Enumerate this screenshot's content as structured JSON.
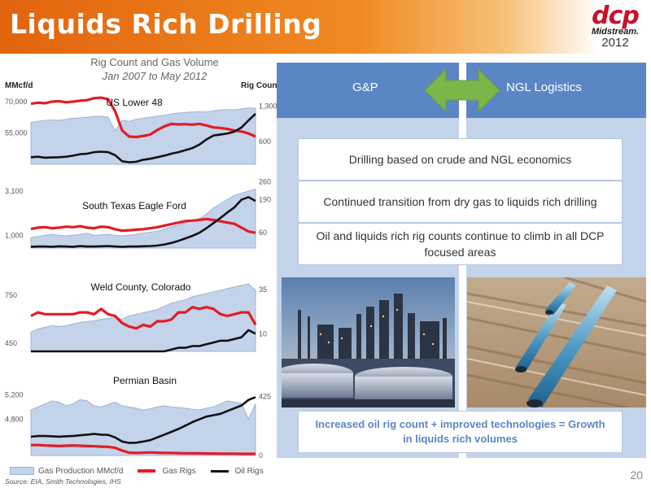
{
  "header": {
    "title": "Liquids Rich Drilling"
  },
  "logo": {
    "mark": "dcp",
    "sub": "Midstream.",
    "year": "2012"
  },
  "left": {
    "title_line1": "Rig Count and Gas Volume",
    "title_line2": "Jan 2007 to May 2012",
    "left_axis_label": "MMcf/d",
    "right_axis_label": "Rig Count"
  },
  "chart_data": [
    {
      "type": "line",
      "title": "US Lower 48",
      "y_left_ticks": [
        "70,000",
        "55,000"
      ],
      "y_right_ticks": [
        "1,300",
        "600"
      ],
      "series": [
        {
          "name": "Gas Production MMcf/d",
          "style": "area",
          "values": [
            60000,
            60500,
            61000,
            61200,
            61000,
            61500,
            62000,
            62200,
            62500,
            62800,
            63000,
            62500,
            56000,
            61000,
            60500,
            61500,
            62000,
            62500,
            63000,
            63500,
            64000,
            64500,
            64800,
            65000,
            65200,
            65000,
            65500,
            66000,
            66200,
            66000,
            66500,
            67000,
            66800
          ]
        },
        {
          "name": "Gas Rigs",
          "style": "line",
          "values": [
            1350,
            1370,
            1360,
            1390,
            1400,
            1380,
            1390,
            1410,
            1420,
            1460,
            1470,
            1440,
            1200,
            820,
            700,
            690,
            710,
            740,
            830,
            900,
            950,
            940,
            945,
            935,
            950,
            920,
            880,
            870,
            850,
            820,
            800,
            760,
            700
          ]
        },
        {
          "name": "Oil Rigs",
          "style": "line",
          "values": [
            290,
            300,
            280,
            285,
            290,
            300,
            320,
            350,
            360,
            390,
            400,
            390,
            330,
            210,
            190,
            200,
            240,
            260,
            290,
            320,
            360,
            390,
            430,
            470,
            540,
            640,
            720,
            740,
            760,
            800,
            880,
            1020,
            1150
          ]
        }
      ]
    },
    {
      "type": "line",
      "title": "South Texas Eagle Ford",
      "y_left_ticks": [
        "3,100",
        "1,000"
      ],
      "y_right_ticks": [
        "260",
        "190",
        "60"
      ],
      "series": [
        {
          "name": "Gas Production MMcf/d",
          "style": "area",
          "values": [
            900,
            950,
            1000,
            1050,
            1000,
            980,
            1000,
            1050,
            1100,
            1000,
            1020,
            1050,
            1000,
            980,
            1000,
            1050,
            1100,
            1150,
            1200,
            1300,
            1400,
            1500,
            1600,
            1700,
            1800,
            2000,
            2300,
            2500,
            2700,
            2900,
            3000,
            3100,
            3200
          ]
        },
        {
          "name": "Gas Rigs",
          "style": "line",
          "values": [
            75,
            80,
            82,
            78,
            80,
            84,
            82,
            86,
            80,
            78,
            84,
            82,
            74,
            68,
            70,
            72,
            74,
            78,
            82,
            88,
            94,
            100,
            106,
            108,
            110,
            114,
            110,
            105,
            100,
            95,
            80,
            65,
            60
          ]
        },
        {
          "name": "Oil Rigs",
          "style": "line",
          "values": [
            5,
            6,
            6,
            5,
            7,
            6,
            5,
            8,
            6,
            6,
            7,
            8,
            6,
            5,
            6,
            6,
            7,
            8,
            10,
            14,
            20,
            28,
            38,
            48,
            60,
            78,
            98,
            118,
            140,
            160,
            190,
            200,
            185
          ]
        }
      ]
    },
    {
      "type": "line",
      "title": "Weld County, Colorado",
      "y_left_ticks": [
        "750",
        "450"
      ],
      "y_right_ticks": [
        "35",
        "10"
      ],
      "series": [
        {
          "name": "Gas Production MMcf/d",
          "style": "area",
          "values": [
            520,
            540,
            550,
            560,
            555,
            560,
            570,
            580,
            585,
            590,
            600,
            605,
            610,
            600,
            620,
            630,
            640,
            650,
            660,
            680,
            700,
            710,
            720,
            740,
            750,
            760,
            770,
            780,
            790,
            800,
            810,
            820,
            780
          ]
        },
        {
          "name": "Gas Rigs",
          "style": "line",
          "values": [
            20,
            22,
            21,
            21,
            21,
            21,
            21,
            22,
            22,
            21,
            24,
            21,
            20,
            16,
            14,
            13,
            15,
            14,
            17,
            17,
            18,
            22,
            22,
            25,
            24,
            25,
            24,
            21,
            20,
            21,
            22,
            22,
            15
          ]
        },
        {
          "name": "Oil Rigs",
          "style": "line",
          "values": [
            0,
            0,
            0,
            0,
            0,
            0,
            0,
            0,
            0,
            0,
            0,
            0,
            0,
            0,
            0,
            0,
            0,
            0,
            0,
            0,
            1,
            2,
            2,
            3,
            3,
            4,
            5,
            6,
            6,
            7,
            8,
            12,
            10
          ]
        }
      ]
    },
    {
      "type": "line",
      "title": "Permian Basin",
      "y_left_ticks": [
        "5,200",
        "4,800"
      ],
      "y_right_ticks": [
        "425",
        "0"
      ],
      "series": [
        {
          "name": "Gas Production MMcf/d",
          "style": "area",
          "values": [
            4950,
            5000,
            5050,
            5100,
            5080,
            5020,
            5050,
            5120,
            5100,
            5020,
            5000,
            5040,
            5080,
            5020,
            5000,
            4980,
            4950,
            4970,
            5000,
            5020,
            5000,
            4990,
            4980,
            4960,
            4950,
            4980,
            5000,
            5050,
            5100,
            5080,
            5060,
            4800,
            5050
          ]
        },
        {
          "name": "Gas Rigs",
          "style": "line",
          "values": [
            75,
            75,
            72,
            70,
            68,
            70,
            72,
            70,
            68,
            66,
            64,
            62,
            55,
            35,
            20,
            18,
            20,
            22,
            20,
            18,
            18,
            17,
            16,
            15,
            15,
            14,
            14,
            13,
            13,
            13,
            12,
            12,
            12
          ]
        },
        {
          "name": "Oil Rigs",
          "style": "line",
          "values": [
            135,
            140,
            140,
            138,
            135,
            138,
            140,
            145,
            150,
            155,
            150,
            148,
            130,
            100,
            90,
            92,
            100,
            110,
            130,
            150,
            170,
            190,
            215,
            240,
            260,
            280,
            290,
            300,
            320,
            340,
            360,
            400,
            420
          ]
        }
      ]
    }
  ],
  "legend": {
    "area": "Gas Production MMcf/d",
    "gas": "Gas Rigs",
    "oil": "Oil Rigs"
  },
  "source": "Source:  EIA, Smith Technologies, IHS",
  "page_number": "20",
  "right": {
    "col_left": "G&P",
    "col_right": "NGL Logistics",
    "bullets": [
      "Drilling based on crude and NGL economics",
      "Continued transition from dry gas to liquids rich drilling",
      "Oil and liquids rich rig counts continue to climb in all DCP focused areas"
    ],
    "bottom": "Increased oil rig count + improved technologies = Growth in liquids rich volumes"
  }
}
